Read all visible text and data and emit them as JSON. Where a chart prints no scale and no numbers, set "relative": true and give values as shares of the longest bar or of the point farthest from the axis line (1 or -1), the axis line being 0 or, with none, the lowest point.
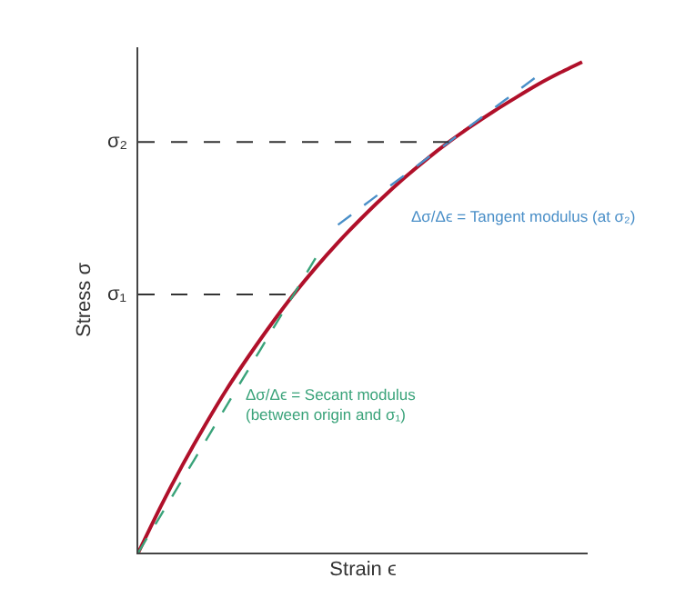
{
  "chart_data": {
    "type": "line",
    "relative": true,
    "xlabel": "Strain ϵ",
    "ylabel": "Stress σ",
    "tick_labels": false,
    "legend": false,
    "marker": "none",
    "categories": [
      null,
      null,
      null,
      null,
      null,
      null,
      null,
      null,
      null,
      null,
      null,
      null,
      null,
      null,
      null,
      null,
      null,
      null,
      null,
      null,
      null
    ],
    "series": [
      {
        "color": "#b0102a",
        "line_style": "solid",
        "values": [
          0,
          0.093,
          0.179,
          0.259,
          0.334,
          0.402,
          0.466,
          0.526,
          0.581,
          0.632,
          0.679,
          0.723,
          0.764,
          0.802,
          0.837,
          0.869,
          0.899,
          0.927,
          0.954,
          0.978,
          1.0
        ]
      },
      {
        "color": "#4a8fc8",
        "line_style": "dashed",
        "values": [
          null,
          null,
          null,
          null,
          null,
          null,
          null,
          null,
          null,
          0.668,
          0.702,
          0.736,
          0.769,
          0.803,
          0.837,
          0.871,
          0.905,
          0.938,
          0.972,
          null,
          null
        ]
      },
      {
        "color": "#3aa37a",
        "line_style": "dashed",
        "values": [
          0,
          0.075,
          0.15,
          0.225,
          0.301,
          0.376,
          0.451,
          0.526,
          0.601,
          null,
          null,
          null,
          null,
          null,
          null,
          null,
          null,
          null,
          null,
          null,
          null
        ]
      }
    ],
    "ref_lines": [
      {
        "axis": "y",
        "value": 0.526,
        "label": "σ₁",
        "color": "#333333",
        "line_style": "dashed"
      },
      {
        "axis": "y",
        "value": 0.837,
        "label": "σ₂",
        "color": "#333333",
        "line_style": "dashed"
      }
    ],
    "annotations": [
      "Δσ/Δϵ = Tangent modulus (at σ₂)",
      "Δσ/Δϵ = Secant modulus\n(between origin and σ₁)"
    ]
  }
}
